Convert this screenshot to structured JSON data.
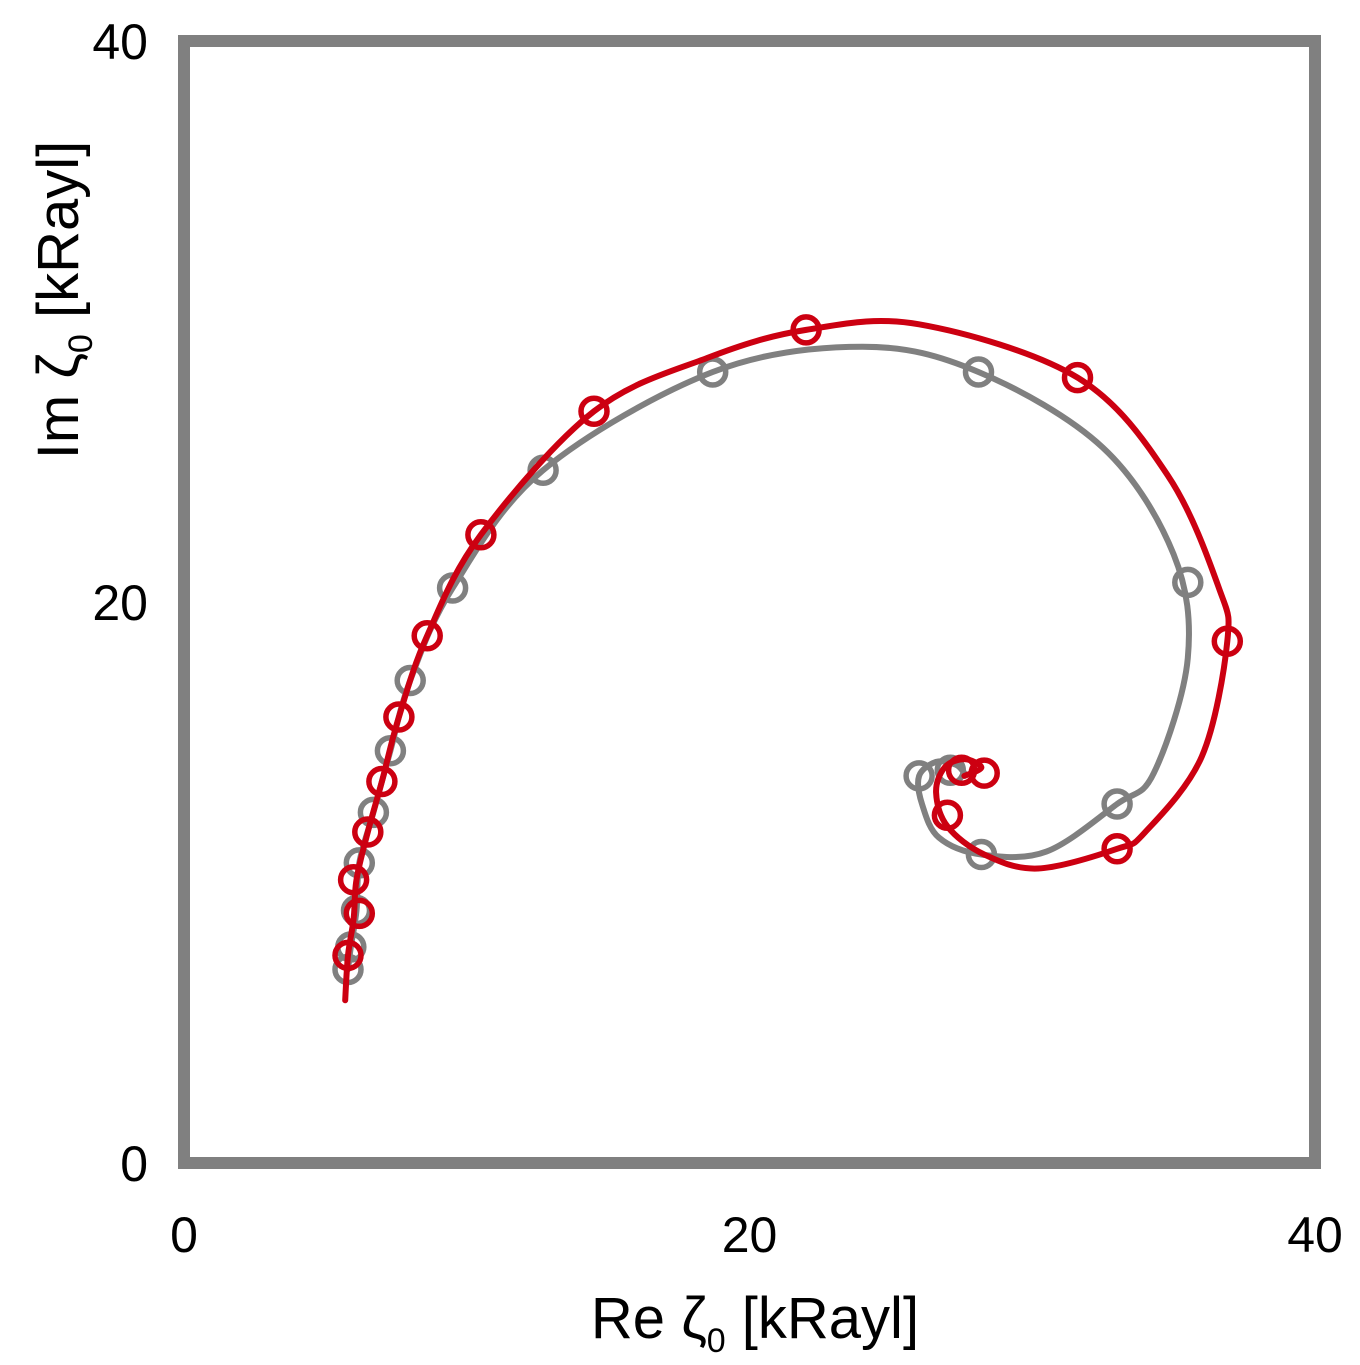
{
  "chart_data": {
    "type": "scatter",
    "xlabel": {
      "prefix": "Re ",
      "symbol": "ζ",
      "subscript": "0",
      "suffix": " [kRayl]"
    },
    "ylabel": {
      "prefix": "Im ",
      "symbol": "ζ",
      "subscript": "0",
      "suffix": " [kRayl]"
    },
    "xlim": [
      0,
      40
    ],
    "ylim": [
      0,
      40
    ],
    "x_ticks": [
      "0",
      "20",
      "40"
    ],
    "y_ticks": [
      "0",
      "20",
      "40"
    ],
    "grid": false,
    "frame_color": "#808080",
    "series": [
      {
        "color": "#808080",
        "markers": [
          [
            5.8,
            6.9
          ],
          [
            5.9,
            7.7
          ],
          [
            6.1,
            9.0
          ],
          [
            6.2,
            10.7
          ],
          [
            6.7,
            12.5
          ],
          [
            7.3,
            14.7
          ],
          [
            8.0,
            17.2
          ],
          [
            9.5,
            20.5
          ],
          [
            12.7,
            24.7
          ],
          [
            18.7,
            28.2
          ],
          [
            28.1,
            28.2
          ],
          [
            35.5,
            20.7
          ],
          [
            33.0,
            12.8
          ],
          [
            28.2,
            11.0
          ],
          [
            26.0,
            13.8
          ],
          [
            27.1,
            14.0
          ]
        ],
        "curve": [
          [
            5.8,
            6.9
          ],
          [
            5.9,
            7.7
          ],
          [
            6.1,
            9.0
          ],
          [
            6.2,
            10.7
          ],
          [
            6.7,
            12.5
          ],
          [
            7.3,
            14.7
          ],
          [
            8.0,
            17.2
          ],
          [
            9.5,
            20.5
          ],
          [
            12.7,
            24.7
          ],
          [
            18.7,
            28.2
          ],
          [
            24.0,
            29.1
          ],
          [
            28.1,
            28.2
          ],
          [
            32.5,
            25.5
          ],
          [
            35.0,
            21.7
          ],
          [
            35.5,
            18.0
          ],
          [
            34.3,
            13.9
          ],
          [
            33.0,
            12.8
          ],
          [
            30.5,
            11.1
          ],
          [
            28.2,
            11.0
          ],
          [
            26.7,
            11.6
          ],
          [
            26.1,
            12.8
          ],
          [
            26.0,
            13.8
          ],
          [
            26.6,
            14.3
          ],
          [
            27.3,
            14.2
          ],
          [
            27.6,
            13.9
          ]
        ]
      },
      {
        "color": "#cc0011",
        "markers": [
          [
            5.8,
            7.4
          ],
          [
            6.2,
            8.9
          ],
          [
            6.0,
            10.1
          ],
          [
            6.5,
            11.8
          ],
          [
            7.0,
            13.6
          ],
          [
            7.6,
            15.9
          ],
          [
            8.6,
            18.8
          ],
          [
            10.5,
            22.4
          ],
          [
            14.5,
            26.8
          ],
          [
            22.0,
            29.7
          ],
          [
            31.6,
            28.0
          ],
          [
            36.9,
            18.6
          ],
          [
            33.0,
            11.2
          ],
          [
            27.0,
            12.4
          ],
          [
            28.3,
            13.9
          ],
          [
            27.5,
            14.0
          ]
        ],
        "curve": [
          [
            5.7,
            5.8
          ],
          [
            5.8,
            7.4
          ],
          [
            6.0,
            8.7
          ],
          [
            6.1,
            10.1
          ],
          [
            6.5,
            11.8
          ],
          [
            7.0,
            13.6
          ],
          [
            7.6,
            15.9
          ],
          [
            8.6,
            18.8
          ],
          [
            10.5,
            22.4
          ],
          [
            14.5,
            26.8
          ],
          [
            18.5,
            28.7
          ],
          [
            22.0,
            29.7
          ],
          [
            26.0,
            29.9
          ],
          [
            31.6,
            28.0
          ],
          [
            34.8,
            24.5
          ],
          [
            36.6,
            20.5
          ],
          [
            36.9,
            18.6
          ],
          [
            36.0,
            14.5
          ],
          [
            34.0,
            11.8
          ],
          [
            33.0,
            11.2
          ],
          [
            30.2,
            10.5
          ],
          [
            28.3,
            11.0
          ],
          [
            27.0,
            12.0
          ],
          [
            26.6,
            13.2
          ],
          [
            26.9,
            14.1
          ],
          [
            27.6,
            14.4
          ],
          [
            28.2,
            14.1
          ],
          [
            27.6,
            13.8
          ]
        ]
      }
    ]
  }
}
